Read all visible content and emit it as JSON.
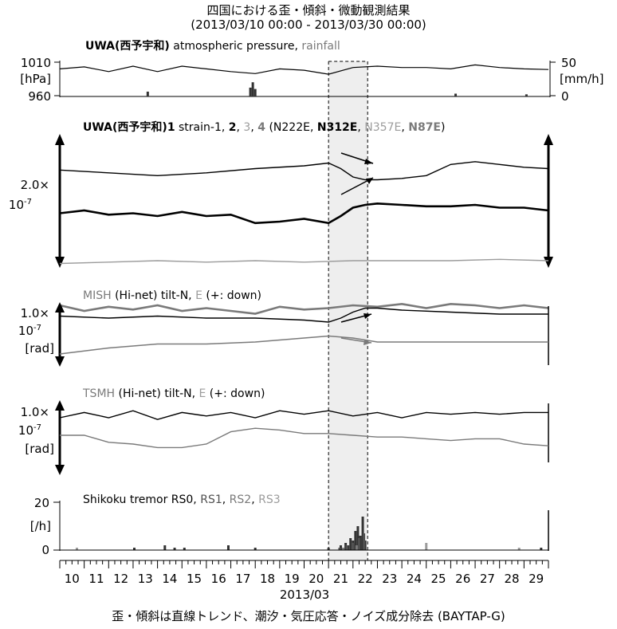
{
  "title": "四国における歪・傾斜・微動観測結果",
  "subtitle": "(2013/03/10 00:00 - 2013/03/30 00:00)",
  "footer": "歪・傾斜は直線トレンド、潮汐・気圧応答・ノイズ成分除去 (BAYTAP-G)",
  "colors": {
    "black": "#000000",
    "dark_gray": "#505050",
    "mid_gray": "#7a7a7a",
    "light_gray": "#9c9c9c",
    "event_fill": "#eeeeee"
  },
  "chart_data": [
    {
      "type": "line",
      "panel": "pressure-rainfall",
      "title_parts": [
        "UWA(西予宇和)",
        " atmospheric pressure, ",
        "rainfall"
      ],
      "left_axis": {
        "unit": "[hPa]",
        "ticks": [
          "1010",
          "960"
        ],
        "ylim": [
          960,
          1010
        ]
      },
      "right_axis": {
        "unit": "[mm/h]",
        "ticks": [
          "50",
          "0"
        ],
        "ylim": [
          0,
          50
        ]
      },
      "series": [
        {
          "name": "atmospheric pressure",
          "x": [
            10.0,
            11.0,
            12.0,
            13.0,
            14.0,
            15.0,
            16.0,
            17.0,
            18.0,
            19.0,
            20.0,
            21.0,
            22.0,
            23.0,
            24.0,
            25.0,
            26.0,
            27.0,
            28.0,
            29.0,
            30.0
          ],
          "values": [
            1000,
            1003,
            996,
            1004,
            996,
            1004,
            1000,
            996,
            993,
            1000,
            998,
            992,
            1002,
            1004,
            1002,
            1002,
            1000,
            1006,
            1002,
            1000,
            999
          ]
        }
      ],
      "rainfall": {
        "x": [
          13.6,
          17.8,
          17.9,
          18.0,
          26.2,
          29.1
        ],
        "values": [
          6,
          12,
          20,
          10,
          3,
          2
        ]
      }
    },
    {
      "type": "line",
      "panel": "strain",
      "title_parts": [
        "UWA(西予宇和)1",
        " strain-1, ",
        "2",
        ", ",
        "3",
        ", ",
        "4",
        " (N222E, ",
        "N312E",
        ", ",
        "N357E",
        ", ",
        "N87E",
        ")"
      ],
      "scale_label": [
        "2.0×",
        "10-7"
      ],
      "series": [
        {
          "name": "1",
          "x": [
            10,
            12,
            14,
            16,
            18,
            20,
            21,
            21.5,
            22,
            22.5,
            23,
            24,
            25,
            26,
            27,
            28,
            29,
            30
          ],
          "values": [
            0.5,
            0.3,
            0.1,
            0.3,
            0.6,
            0.8,
            1.0,
            0.6,
            0.0,
            -0.2,
            -0.2,
            -0.1,
            0.1,
            0.9,
            1.1,
            0.9,
            0.7,
            0.6
          ]
        },
        {
          "name": "2",
          "x": [
            10,
            11,
            12,
            13,
            14,
            15,
            16,
            17,
            18,
            19,
            20,
            21,
            21.5,
            22,
            22.5,
            23,
            24,
            25,
            26,
            27,
            28,
            29,
            30
          ],
          "values": [
            -2.6,
            -2.4,
            -2.7,
            -2.6,
            -2.8,
            -2.5,
            -2.8,
            -2.7,
            -3.3,
            -3.2,
            -3.0,
            -3.3,
            -2.8,
            -2.2,
            -2.0,
            -1.9,
            -2.0,
            -2.1,
            -2.1,
            -2.0,
            -2.2,
            -2.2,
            -2.4
          ]
        },
        {
          "name": "3",
          "x": [
            10,
            12,
            14,
            16,
            18,
            20,
            22,
            24,
            26,
            28,
            30
          ],
          "values": [
            -6.2,
            -6.1,
            -6.0,
            -6.1,
            -6.0,
            -6.1,
            -6.0,
            -6.0,
            -6.0,
            -5.9,
            -6.0
          ]
        },
        {
          "name": "4",
          "x": [
            10,
            11,
            12,
            13,
            14,
            15,
            16,
            17,
            18,
            19,
            20,
            21,
            22,
            23,
            24,
            25,
            26,
            27,
            28,
            29,
            30
          ],
          "values": [
            -9.2,
            -9.6,
            -9.3,
            -9.5,
            -9.2,
            -9.6,
            -9.4,
            -9.6,
            -9.8,
            -9.3,
            -9.5,
            -9.4,
            -9.2,
            -9.3,
            -9.1,
            -9.4,
            -9.1,
            -9.2,
            -9.4,
            -9.2,
            -9.4
          ]
        }
      ]
    },
    {
      "type": "line",
      "panel": "tilt-MISH",
      "title_parts": [
        "MISH",
        " (Hi-net) tilt-N, ",
        "E",
        " (+: down)"
      ],
      "scale_label": [
        "1.0×",
        "10-7",
        "[rad]"
      ],
      "series": [
        {
          "name": "N",
          "x": [
            10,
            12,
            14,
            16,
            18,
            20,
            21,
            21.5,
            22,
            22.5,
            23,
            24,
            26,
            28,
            30
          ],
          "values": [
            0.3,
            0.2,
            0.3,
            0.2,
            0.2,
            0.1,
            0.0,
            0.2,
            0.5,
            0.7,
            0.7,
            0.6,
            0.5,
            0.4,
            0.4
          ]
        },
        {
          "name": "E",
          "x": [
            10,
            12,
            14,
            16,
            18,
            20,
            21,
            22,
            23,
            24,
            26,
            28,
            30
          ],
          "values": [
            -1.6,
            -1.3,
            -1.1,
            -1.1,
            -1.0,
            -0.8,
            -0.7,
            -0.8,
            -1.0,
            -1.0,
            -1.0,
            -1.0,
            -1.0
          ]
        }
      ]
    },
    {
      "type": "line",
      "panel": "tilt-TSMH",
      "title_parts": [
        "TSMH",
        " (Hi-net) tilt-N, ",
        "E",
        " (+: down)"
      ],
      "scale_label": [
        "1.0×",
        "10-7",
        "[rad]"
      ],
      "series": [
        {
          "name": "N",
          "x": [
            10,
            11,
            12,
            13,
            14,
            15,
            16,
            17,
            18,
            19,
            20,
            21,
            22,
            23,
            24,
            25,
            26,
            27,
            28,
            29,
            30
          ],
          "values": [
            0.0,
            0.3,
            0.0,
            0.4,
            -0.1,
            0.3,
            0.1,
            0.3,
            0.0,
            0.4,
            0.2,
            0.4,
            0.1,
            0.3,
            0.0,
            0.3,
            0.2,
            0.3,
            0.2,
            0.3,
            0.3
          ]
        },
        {
          "name": "E",
          "x": [
            10,
            11,
            12,
            13,
            14,
            15,
            16,
            17,
            18,
            19,
            20,
            21,
            22,
            23,
            24,
            25,
            26,
            27,
            28,
            29,
            30
          ],
          "values": [
            -1.0,
            -1.0,
            -1.4,
            -1.5,
            -1.7,
            -1.7,
            -1.5,
            -0.8,
            -0.6,
            -0.7,
            -0.9,
            -0.9,
            -1.0,
            -1.1,
            -1.1,
            -1.2,
            -1.3,
            -1.2,
            -1.2,
            -1.5,
            -1.6
          ]
        }
      ]
    },
    {
      "type": "bar",
      "panel": "tremor",
      "title_parts": [
        "Shikoku tremor RS0, ",
        "RS1",
        ", ",
        "RS2",
        ", ",
        "RS3"
      ],
      "y_axis": {
        "unit": "[/h]",
        "ticks": [
          "20",
          "0"
        ],
        "ylim": [
          0,
          20
        ]
      },
      "series": [
        {
          "name": "RS0",
          "x": [
            13.05,
            14.3,
            14.7,
            15.1,
            16.9,
            18.0,
            21.0,
            21.5,
            21.7,
            21.8,
            21.9,
            22.0,
            22.1,
            22.2,
            22.3,
            22.4,
            22.5,
            29.7
          ],
          "values": [
            1,
            2,
            1,
            1,
            2,
            1,
            1,
            2,
            3,
            2,
            5,
            4,
            8,
            10,
            6,
            14,
            4,
            1
          ]
        },
        {
          "name": "RS1",
          "x": [
            21.45,
            21.75,
            22.0,
            22.25,
            22.45
          ],
          "values": [
            1,
            2,
            3,
            5,
            7
          ]
        },
        {
          "name": "RS2",
          "x": [
            21.6,
            22.15
          ],
          "values": [
            1,
            2
          ]
        },
        {
          "name": "RS3",
          "x": [
            10.7,
            25.0,
            28.8
          ],
          "values": [
            1,
            3,
            1
          ]
        }
      ]
    }
  ],
  "x_axis": {
    "ticks": [
      "10",
      "11",
      "12",
      "13",
      "14",
      "15",
      "16",
      "17",
      "18",
      "19",
      "20",
      "21",
      "22",
      "23",
      "24",
      "25",
      "26",
      "27",
      "28",
      "29"
    ],
    "xlabel": "2013/03",
    "xlim": [
      10,
      30
    ]
  },
  "event_window": {
    "start": 21.0,
    "end": 22.6
  }
}
